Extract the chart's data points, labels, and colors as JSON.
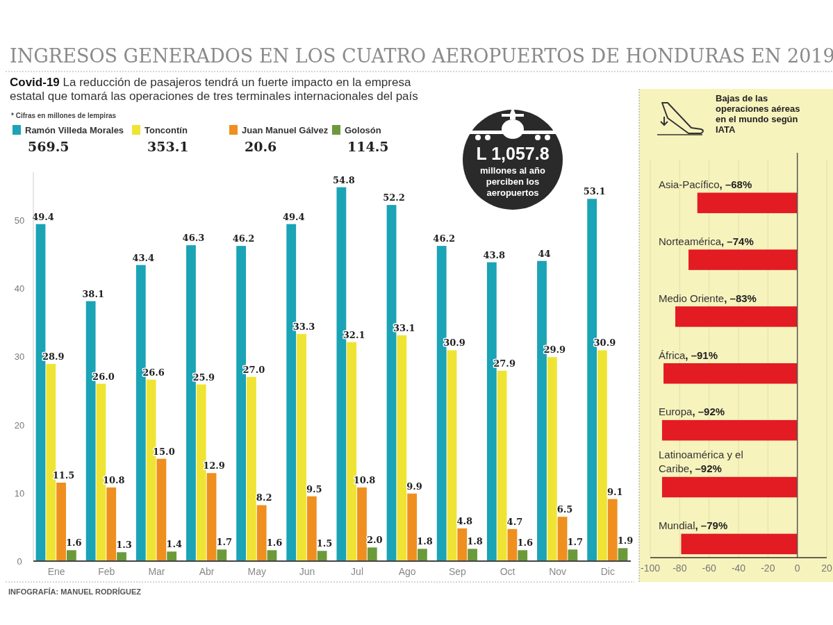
{
  "chart_data": [
    {
      "type": "bar",
      "title": "INGRESOS GENERADOS EN LOS CUATRO AEROPUERTOS DE HONDURAS EN 2019",
      "subtitle": "Covid-19 La reducción de pasajeros tendrá un fuerte impacto en la empresa estatal que tomará las operaciones de tres terminales internacionales del país",
      "categories": [
        "Ene",
        "Feb",
        "Mar",
        "Abr",
        "May",
        "Jun",
        "Jul",
        "Ago",
        "Sep",
        "Oct",
        "Nov",
        "Dic"
      ],
      "series": [
        {
          "name": "Ramón Villeda Morales",
          "color": "#1ba3b6",
          "values": [
            49.4,
            38.1,
            43.4,
            46.3,
            46.2,
            49.4,
            54.8,
            52.2,
            46.2,
            43.8,
            44,
            53.1
          ],
          "value_labels": [
            "49.4",
            "38.1",
            "43.4",
            "46.3",
            "46.2",
            "49.4",
            "54.8",
            "52.2",
            "46.2",
            "43.8",
            "44",
            "53.1"
          ]
        },
        {
          "name": "Toncontín",
          "color": "#efe433",
          "values": [
            28.9,
            26.0,
            26.6,
            25.9,
            27.0,
            33.3,
            32.1,
            33.1,
            30.9,
            27.9,
            29.9,
            30.9
          ],
          "value_labels": [
            "28.9",
            "26.0",
            "26.6",
            "25.9",
            "27.0",
            "33.3",
            "32.1",
            "33.1",
            "30.9",
            "27.9",
            "29.9",
            "30.9"
          ]
        },
        {
          "name": "Juan Manuel Gálvez",
          "color": "#ef8f1f",
          "values": [
            11.5,
            10.8,
            15.0,
            12.9,
            8.2,
            9.5,
            10.8,
            9.9,
            4.8,
            4.7,
            6.5,
            9.1
          ],
          "value_labels": [
            "11.5",
            "10.8",
            "15.0",
            "12.9",
            "8.2",
            "9.5",
            "10.8",
            "9.9",
            "4.8",
            "4.7",
            "6.5",
            "9.1"
          ]
        },
        {
          "name": "Golosón",
          "color": "#6b9a3b",
          "values": [
            1.6,
            1.3,
            1.4,
            1.7,
            1.6,
            1.5,
            2.0,
            1.8,
            1.8,
            1.6,
            1.7,
            1.9
          ],
          "value_labels": [
            "1.6",
            "1.3",
            "1.4",
            "1.7",
            "1.6",
            "1.5",
            "2.0",
            "1.8",
            "1.8",
            "1.6",
            "1.7",
            "1.9"
          ]
        }
      ],
      "ylim": [
        0,
        57
      ],
      "yticks": [
        0,
        10,
        20,
        30,
        40,
        50
      ],
      "grid": false,
      "legend": "top left",
      "annotations": [
        "* Cifras en millones de lempiras",
        "569.5",
        "353.1",
        "20.6",
        "114.5",
        "L 1,057.8",
        "millones al año perciben los aeropuertos",
        "INFOGRAFÍA: MANUEL RODRÍGUEZ"
      ]
    },
    {
      "type": "bar",
      "orientation": "horizontal",
      "title": "Bajas de las operaciones aéreas en el mundo según IATA",
      "categories": [
        "Asia-Pacífico",
        "Norteamérica",
        "Medio Oriente",
        "África",
        "Europa",
        "Latinoamérica y el Caribe",
        "Mundial"
      ],
      "values": [
        -68,
        -74,
        -83,
        -91,
        -92,
        -92,
        -79
      ],
      "value_labels": [
        ", –68%",
        ", –74%",
        ", –83%",
        ", –91%",
        ", –92%",
        ", –92%",
        ", –79%"
      ],
      "color": "#e31b23",
      "xlim": [
        -100,
        20
      ],
      "xticks": [
        -100,
        -80,
        -60,
        -40,
        -20,
        0,
        20
      ],
      "grid": "x"
    }
  ]
}
